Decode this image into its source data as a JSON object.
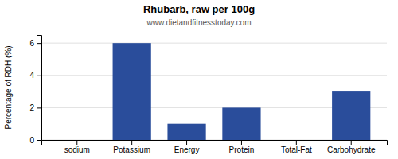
{
  "chart_data": {
    "type": "bar",
    "title": "Rhubarb, raw per 100g",
    "subtitle": "www.dietandfitnesstoday.com",
    "categories": [
      "sodium",
      "Potassium",
      "Energy",
      "Protein",
      "Total-Fat",
      "Carbohydrate"
    ],
    "values": [
      0,
      6,
      1,
      2,
      0,
      3
    ],
    "color": "#2a4d9b",
    "ylabel": "Percentage of RDH (%)",
    "ylim": [
      0,
      6.5
    ],
    "yticks": [
      0,
      2,
      4,
      6
    ],
    "grid": true
  }
}
